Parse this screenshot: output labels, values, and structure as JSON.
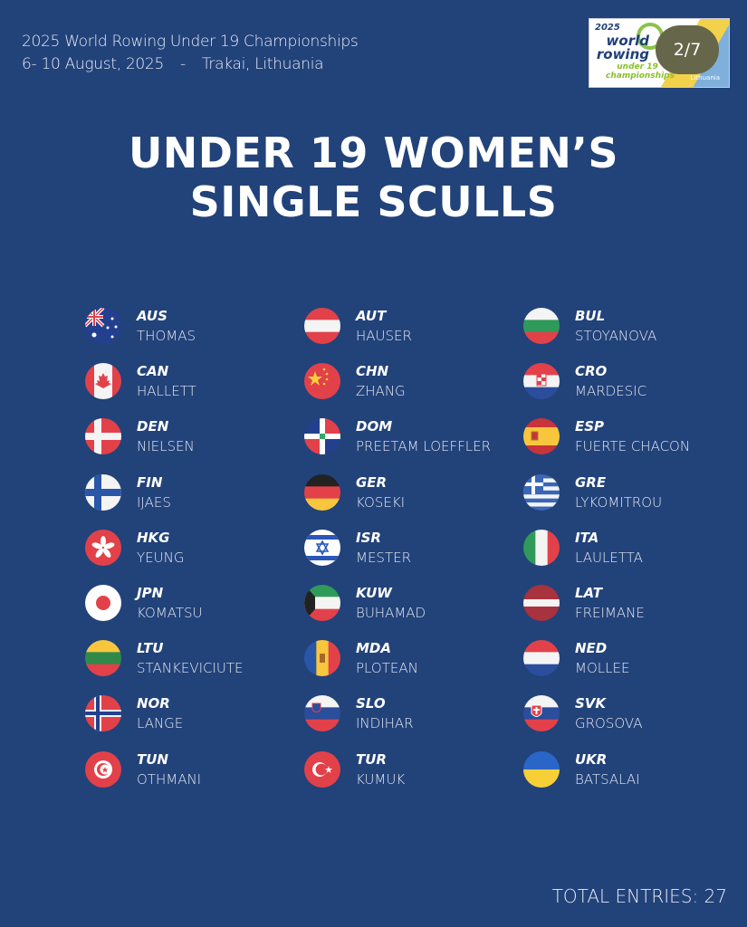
{
  "header": {
    "line1": "2025 World Rowing Under 19 Championships",
    "dates": "6- 10 August, 2025",
    "separator": "-",
    "location": "Trakai, Lithuania"
  },
  "logo": {
    "year": "2025",
    "brand": "world rowing",
    "sub": "under 19 championships",
    "place": "Lithuania"
  },
  "pager": "2/7",
  "title": {
    "line1": "UNDER 19 WOMEN’S",
    "line2": "SINGLE SCULLS"
  },
  "entries": [
    {
      "code": "AUS",
      "name": "THOMAS"
    },
    {
      "code": "AUT",
      "name": "HAUSER"
    },
    {
      "code": "BUL",
      "name": "STOYANOVA"
    },
    {
      "code": "CAN",
      "name": "HALLETT"
    },
    {
      "code": "CHN",
      "name": "ZHANG"
    },
    {
      "code": "CRO",
      "name": "MARDESIC"
    },
    {
      "code": "DEN",
      "name": "NIELSEN"
    },
    {
      "code": "DOM",
      "name": "PREETAM LOEFFLER"
    },
    {
      "code": "ESP",
      "name": "FUERTE CHACON"
    },
    {
      "code": "FIN",
      "name": "IJAES"
    },
    {
      "code": "GER",
      "name": "KOSEKI"
    },
    {
      "code": "GRE",
      "name": "LYKOMITROU"
    },
    {
      "code": "HKG",
      "name": "YEUNG"
    },
    {
      "code": "ISR",
      "name": "MESTER"
    },
    {
      "code": "ITA",
      "name": "LAULETTA"
    },
    {
      "code": "JPN",
      "name": "KOMATSU"
    },
    {
      "code": "KUW",
      "name": "BUHAMAD"
    },
    {
      "code": "LAT",
      "name": "FREIMANE"
    },
    {
      "code": "LTU",
      "name": "STANKEVICIUTE"
    },
    {
      "code": "MDA",
      "name": "PLOTEAN"
    },
    {
      "code": "NED",
      "name": "MOLLEE"
    },
    {
      "code": "NOR",
      "name": "LANGE"
    },
    {
      "code": "SLO",
      "name": "INDIHAR"
    },
    {
      "code": "SVK",
      "name": "GROSOVA"
    },
    {
      "code": "TUN",
      "name": "OTHMANI"
    },
    {
      "code": "TUR",
      "name": "KUMUK"
    },
    {
      "code": "UKR",
      "name": "BATSALAI"
    }
  ],
  "total": "TOTAL ENTRIES: 27",
  "colors": {
    "background": "#22427a",
    "pager": "#66664a"
  }
}
